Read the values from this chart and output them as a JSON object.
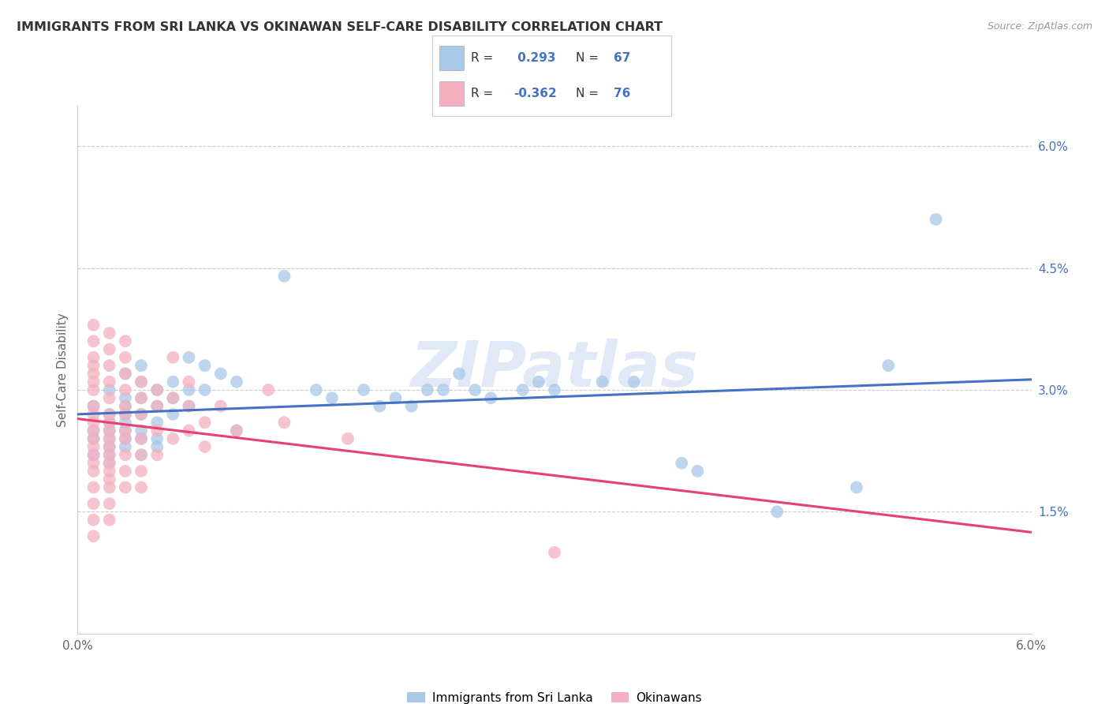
{
  "title": "IMMIGRANTS FROM SRI LANKA VS OKINAWAN SELF-CARE DISABILITY CORRELATION CHART",
  "source": "Source: ZipAtlas.com",
  "ylabel": "Self-Care Disability",
  "xmin": 0.0,
  "xmax": 0.06,
  "ymin": 0.0,
  "ymax": 0.065,
  "blue_R": 0.293,
  "blue_N": 67,
  "pink_R": -0.362,
  "pink_N": 76,
  "blue_color": "#a8c8e8",
  "pink_color": "#f4b0c0",
  "blue_line_color": "#4472c4",
  "pink_line_color": "#e84070",
  "watermark": "ZIPatlas",
  "legend_label_blue": "Immigrants from Sri Lanka",
  "legend_label_pink": "Okinawans",
  "blue_scatter": [
    [
      0.001,
      0.028
    ],
    [
      0.001,
      0.025
    ],
    [
      0.001,
      0.024
    ],
    [
      0.001,
      0.022
    ],
    [
      0.002,
      0.03
    ],
    [
      0.002,
      0.027
    ],
    [
      0.002,
      0.026
    ],
    [
      0.002,
      0.025
    ],
    [
      0.002,
      0.024
    ],
    [
      0.002,
      0.023
    ],
    [
      0.002,
      0.022
    ],
    [
      0.002,
      0.021
    ],
    [
      0.003,
      0.032
    ],
    [
      0.003,
      0.029
    ],
    [
      0.003,
      0.028
    ],
    [
      0.003,
      0.027
    ],
    [
      0.003,
      0.026
    ],
    [
      0.003,
      0.025
    ],
    [
      0.003,
      0.024
    ],
    [
      0.003,
      0.023
    ],
    [
      0.004,
      0.033
    ],
    [
      0.004,
      0.031
    ],
    [
      0.004,
      0.029
    ],
    [
      0.004,
      0.027
    ],
    [
      0.004,
      0.025
    ],
    [
      0.004,
      0.024
    ],
    [
      0.004,
      0.022
    ],
    [
      0.005,
      0.03
    ],
    [
      0.005,
      0.028
    ],
    [
      0.005,
      0.026
    ],
    [
      0.005,
      0.024
    ],
    [
      0.005,
      0.023
    ],
    [
      0.006,
      0.031
    ],
    [
      0.006,
      0.029
    ],
    [
      0.006,
      0.027
    ],
    [
      0.007,
      0.034
    ],
    [
      0.007,
      0.03
    ],
    [
      0.007,
      0.028
    ],
    [
      0.008,
      0.033
    ],
    [
      0.008,
      0.03
    ],
    [
      0.009,
      0.032
    ],
    [
      0.01,
      0.031
    ],
    [
      0.01,
      0.025
    ],
    [
      0.013,
      0.044
    ],
    [
      0.015,
      0.03
    ],
    [
      0.016,
      0.029
    ],
    [
      0.018,
      0.03
    ],
    [
      0.019,
      0.028
    ],
    [
      0.02,
      0.029
    ],
    [
      0.021,
      0.028
    ],
    [
      0.022,
      0.03
    ],
    [
      0.023,
      0.03
    ],
    [
      0.024,
      0.032
    ],
    [
      0.025,
      0.03
    ],
    [
      0.026,
      0.029
    ],
    [
      0.028,
      0.03
    ],
    [
      0.029,
      0.031
    ],
    [
      0.03,
      0.03
    ],
    [
      0.033,
      0.031
    ],
    [
      0.035,
      0.031
    ],
    [
      0.038,
      0.021
    ],
    [
      0.039,
      0.02
    ],
    [
      0.044,
      0.015
    ],
    [
      0.049,
      0.018
    ],
    [
      0.051,
      0.033
    ],
    [
      0.054,
      0.051
    ]
  ],
  "pink_scatter": [
    [
      0.001,
      0.038
    ],
    [
      0.001,
      0.036
    ],
    [
      0.001,
      0.034
    ],
    [
      0.001,
      0.033
    ],
    [
      0.001,
      0.032
    ],
    [
      0.001,
      0.031
    ],
    [
      0.001,
      0.03
    ],
    [
      0.001,
      0.028
    ],
    [
      0.001,
      0.027
    ],
    [
      0.001,
      0.026
    ],
    [
      0.001,
      0.025
    ],
    [
      0.001,
      0.024
    ],
    [
      0.001,
      0.023
    ],
    [
      0.001,
      0.022
    ],
    [
      0.001,
      0.021
    ],
    [
      0.001,
      0.02
    ],
    [
      0.001,
      0.018
    ],
    [
      0.001,
      0.016
    ],
    [
      0.001,
      0.014
    ],
    [
      0.001,
      0.012
    ],
    [
      0.002,
      0.037
    ],
    [
      0.002,
      0.035
    ],
    [
      0.002,
      0.033
    ],
    [
      0.002,
      0.031
    ],
    [
      0.002,
      0.029
    ],
    [
      0.002,
      0.027
    ],
    [
      0.002,
      0.026
    ],
    [
      0.002,
      0.025
    ],
    [
      0.002,
      0.024
    ],
    [
      0.002,
      0.023
    ],
    [
      0.002,
      0.022
    ],
    [
      0.002,
      0.021
    ],
    [
      0.002,
      0.02
    ],
    [
      0.002,
      0.019
    ],
    [
      0.002,
      0.018
    ],
    [
      0.002,
      0.016
    ],
    [
      0.002,
      0.014
    ],
    [
      0.003,
      0.036
    ],
    [
      0.003,
      0.034
    ],
    [
      0.003,
      0.032
    ],
    [
      0.003,
      0.03
    ],
    [
      0.003,
      0.028
    ],
    [
      0.003,
      0.027
    ],
    [
      0.003,
      0.025
    ],
    [
      0.003,
      0.024
    ],
    [
      0.003,
      0.022
    ],
    [
      0.003,
      0.02
    ],
    [
      0.003,
      0.018
    ],
    [
      0.004,
      0.031
    ],
    [
      0.004,
      0.029
    ],
    [
      0.004,
      0.027
    ],
    [
      0.004,
      0.024
    ],
    [
      0.004,
      0.022
    ],
    [
      0.004,
      0.02
    ],
    [
      0.004,
      0.018
    ],
    [
      0.005,
      0.03
    ],
    [
      0.005,
      0.028
    ],
    [
      0.005,
      0.025
    ],
    [
      0.005,
      0.022
    ],
    [
      0.006,
      0.034
    ],
    [
      0.006,
      0.029
    ],
    [
      0.006,
      0.024
    ],
    [
      0.007,
      0.031
    ],
    [
      0.007,
      0.028
    ],
    [
      0.007,
      0.025
    ],
    [
      0.008,
      0.026
    ],
    [
      0.008,
      0.023
    ],
    [
      0.009,
      0.028
    ],
    [
      0.01,
      0.025
    ],
    [
      0.012,
      0.03
    ],
    [
      0.013,
      0.026
    ],
    [
      0.017,
      0.024
    ],
    [
      0.03,
      0.01
    ]
  ]
}
